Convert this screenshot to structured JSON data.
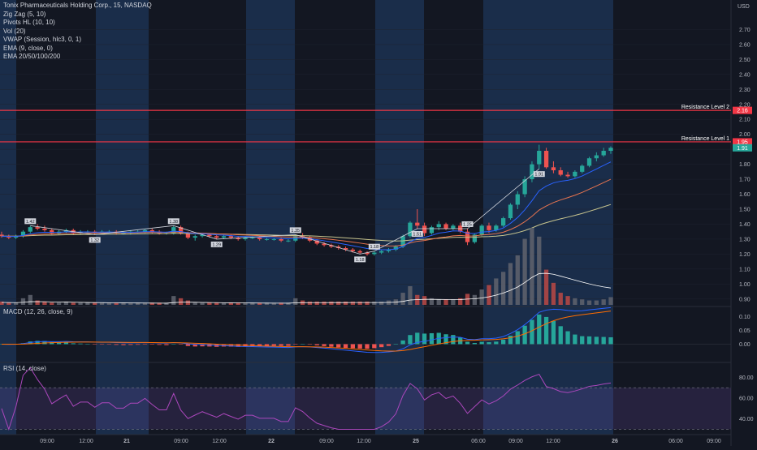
{
  "chart_data": {
    "type": "candlestick",
    "symbol_title": "Tonix Pharmaceuticals Holding Corp., 15, NASDAQ",
    "currency": "USD",
    "indicators": [
      "Zig Zag (5, 10)",
      "Pivots HL (10, 10)",
      "Vol (20)",
      "VWAP (Session, hlc3, 0, 1)",
      "EMA (9, close, 0)",
      "EMA 20/50/100/200"
    ],
    "price_axis_ticks": [
      "2.70",
      "2.60",
      "2.50",
      "2.40",
      "2.30",
      "2.20",
      "2.10",
      "2.00",
      "1.90",
      "1.80",
      "1.70",
      "1.60",
      "1.50",
      "1.40",
      "1.30",
      "1.20",
      "1.10",
      "1.00",
      "0.90"
    ],
    "price_ylim": [
      0.85,
      2.8
    ],
    "resistance_levels": [
      {
        "label": "Resistance Level 2",
        "price": 2.16,
        "tag": "2.16"
      },
      {
        "label": "Resistance Level 1",
        "price": 1.95,
        "tag": "1.95"
      }
    ],
    "last_price_tag": "1.91",
    "candles": [
      [
        1.33,
        1.35,
        1.31,
        1.32
      ],
      [
        1.32,
        1.33,
        1.3,
        1.31
      ],
      [
        1.31,
        1.33,
        1.3,
        1.32
      ],
      [
        1.32,
        1.36,
        1.31,
        1.35
      ],
      [
        1.35,
        1.39,
        1.34,
        1.38
      ],
      [
        1.38,
        1.4,
        1.36,
        1.37
      ],
      [
        1.37,
        1.39,
        1.35,
        1.36
      ],
      [
        1.36,
        1.37,
        1.33,
        1.34
      ],
      [
        1.34,
        1.36,
        1.33,
        1.35
      ],
      [
        1.35,
        1.37,
        1.34,
        1.36
      ],
      [
        1.36,
        1.37,
        1.33,
        1.34
      ],
      [
        1.34,
        1.36,
        1.33,
        1.35
      ],
      [
        1.35,
        1.36,
        1.34,
        1.35
      ],
      [
        1.35,
        1.36,
        1.33,
        1.34
      ],
      [
        1.34,
        1.36,
        1.33,
        1.35
      ],
      [
        1.35,
        1.36,
        1.34,
        1.35
      ],
      [
        1.35,
        1.36,
        1.33,
        1.34
      ],
      [
        1.34,
        1.35,
        1.33,
        1.34
      ],
      [
        1.34,
        1.36,
        1.33,
        1.35
      ],
      [
        1.35,
        1.36,
        1.34,
        1.35
      ],
      [
        1.35,
        1.37,
        1.34,
        1.36
      ],
      [
        1.36,
        1.37,
        1.34,
        1.35
      ],
      [
        1.35,
        1.36,
        1.33,
        1.34
      ],
      [
        1.34,
        1.35,
        1.33,
        1.34
      ],
      [
        1.34,
        1.39,
        1.33,
        1.38
      ],
      [
        1.38,
        1.39,
        1.33,
        1.34
      ],
      [
        1.34,
        1.35,
        1.3,
        1.31
      ],
      [
        1.31,
        1.33,
        1.29,
        1.32
      ],
      [
        1.32,
        1.34,
        1.31,
        1.33
      ],
      [
        1.33,
        1.34,
        1.31,
        1.32
      ],
      [
        1.32,
        1.33,
        1.3,
        1.31
      ],
      [
        1.31,
        1.33,
        1.3,
        1.32
      ],
      [
        1.32,
        1.33,
        1.3,
        1.31
      ],
      [
        1.31,
        1.32,
        1.29,
        1.3
      ],
      [
        1.3,
        1.32,
        1.29,
        1.31
      ],
      [
        1.31,
        1.32,
        1.3,
        1.31
      ],
      [
        1.31,
        1.32,
        1.29,
        1.3
      ],
      [
        1.3,
        1.31,
        1.29,
        1.3
      ],
      [
        1.3,
        1.31,
        1.29,
        1.3
      ],
      [
        1.3,
        1.31,
        1.28,
        1.29
      ],
      [
        1.29,
        1.3,
        1.28,
        1.29
      ],
      [
        1.29,
        1.33,
        1.28,
        1.32
      ],
      [
        1.32,
        1.34,
        1.3,
        1.31
      ],
      [
        1.31,
        1.32,
        1.28,
        1.29
      ],
      [
        1.29,
        1.3,
        1.26,
        1.27
      ],
      [
        1.27,
        1.28,
        1.25,
        1.26
      ],
      [
        1.26,
        1.27,
        1.24,
        1.25
      ],
      [
        1.25,
        1.26,
        1.23,
        1.24
      ],
      [
        1.24,
        1.25,
        1.22,
        1.23
      ],
      [
        1.23,
        1.24,
        1.21,
        1.22
      ],
      [
        1.22,
        1.23,
        1.2,
        1.21
      ],
      [
        1.21,
        1.22,
        1.19,
        1.2
      ],
      [
        1.2,
        1.22,
        1.19,
        1.21
      ],
      [
        1.21,
        1.23,
        1.2,
        1.22
      ],
      [
        1.22,
        1.24,
        1.21,
        1.23
      ],
      [
        1.23,
        1.26,
        1.22,
        1.25
      ],
      [
        1.25,
        1.33,
        1.24,
        1.32
      ],
      [
        1.32,
        1.42,
        1.31,
        1.41
      ],
      [
        1.41,
        1.5,
        1.37,
        1.39
      ],
      [
        1.39,
        1.41,
        1.32,
        1.34
      ],
      [
        1.34,
        1.39,
        1.33,
        1.38
      ],
      [
        1.38,
        1.42,
        1.36,
        1.4
      ],
      [
        1.4,
        1.41,
        1.36,
        1.37
      ],
      [
        1.37,
        1.4,
        1.36,
        1.39
      ],
      [
        1.39,
        1.41,
        1.34,
        1.35
      ],
      [
        1.35,
        1.37,
        1.26,
        1.28
      ],
      [
        1.28,
        1.34,
        1.27,
        1.33
      ],
      [
        1.33,
        1.4,
        1.32,
        1.39
      ],
      [
        1.39,
        1.41,
        1.34,
        1.36
      ],
      [
        1.36,
        1.4,
        1.35,
        1.39
      ],
      [
        1.39,
        1.45,
        1.38,
        1.44
      ],
      [
        1.44,
        1.54,
        1.43,
        1.53
      ],
      [
        1.53,
        1.62,
        1.5,
        1.6
      ],
      [
        1.6,
        1.72,
        1.58,
        1.7
      ],
      [
        1.7,
        1.82,
        1.68,
        1.8
      ],
      [
        1.8,
        1.93,
        1.77,
        1.89
      ],
      [
        1.89,
        1.91,
        1.77,
        1.78
      ],
      [
        1.78,
        1.82,
        1.74,
        1.76
      ],
      [
        1.76,
        1.78,
        1.72,
        1.73
      ],
      [
        1.73,
        1.75,
        1.71,
        1.72
      ],
      [
        1.72,
        1.76,
        1.71,
        1.75
      ],
      [
        1.75,
        1.8,
        1.74,
        1.79
      ],
      [
        1.79,
        1.85,
        1.78,
        1.84
      ],
      [
        1.84,
        1.88,
        1.82,
        1.86
      ],
      [
        1.86,
        1.91,
        1.85,
        1.89
      ],
      [
        1.89,
        1.92,
        1.87,
        1.91
      ]
    ],
    "zigzag_labels": [
      "1.42",
      "1.32",
      "1.38",
      "1.29",
      "1.35",
      "1.18",
      "1.18",
      "1.51",
      "1.25",
      "1.91"
    ],
    "volume": [
      3,
      2,
      2,
      6,
      9,
      4,
      3,
      2,
      2,
      3,
      2,
      2,
      2,
      2,
      2,
      2,
      2,
      2,
      2,
      2,
      2,
      2,
      2,
      2,
      8,
      6,
      4,
      2,
      2,
      2,
      2,
      2,
      2,
      2,
      2,
      2,
      2,
      2,
      2,
      2,
      2,
      6,
      4,
      3,
      3,
      3,
      3,
      3,
      3,
      3,
      3,
      3,
      3,
      3,
      4,
      5,
      11,
      17,
      9,
      8,
      6,
      5,
      5,
      5,
      6,
      10,
      9,
      14,
      18,
      24,
      30,
      38,
      45,
      60,
      70,
      62,
      32,
      20,
      11,
      8,
      6,
      5,
      4,
      4,
      5,
      7
    ],
    "macd_ticks": [
      "0.10",
      "0.05",
      "0.00"
    ],
    "macd_ylim": [
      -0.06,
      0.13
    ],
    "rsi_ticks": [
      "80.00",
      "60.00",
      "40.00"
    ],
    "rsi_ylim": [
      28,
      92
    ],
    "rsi_bands": [
      70,
      30
    ],
    "time_ticks": [
      "09:00",
      "12:00",
      "21",
      "09:00",
      "12:00",
      "22",
      "09:00",
      "12:00",
      "25",
      "06:00",
      "09:00",
      "12:00",
      "26",
      "06:00",
      "09:00"
    ]
  }
}
